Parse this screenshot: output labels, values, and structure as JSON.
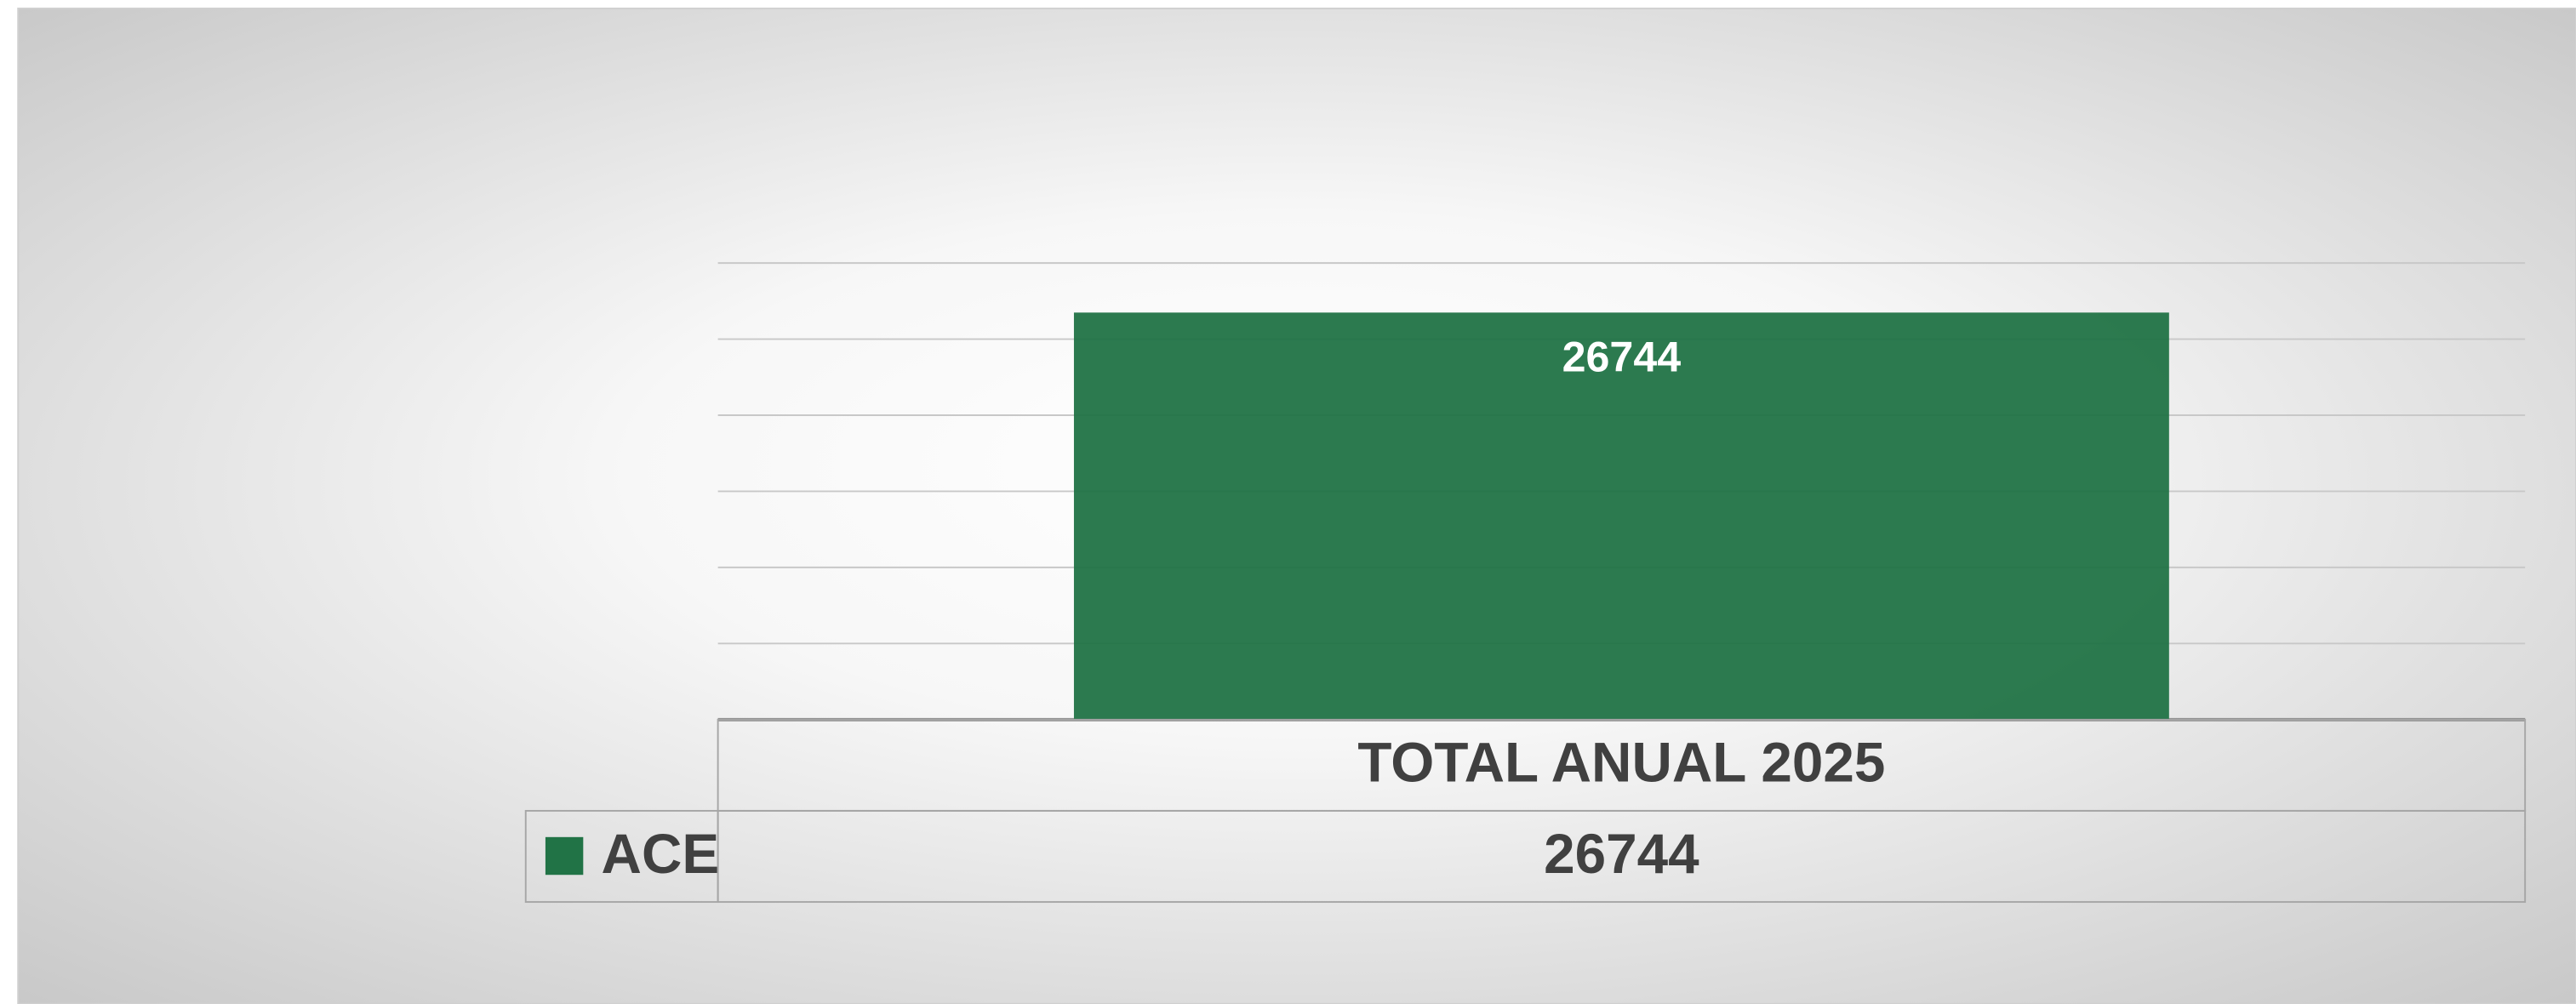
{
  "chart_data": {
    "type": "bar",
    "categories": [
      "TOTAL ANUAL 2025"
    ],
    "series": [
      {
        "name": "ACE",
        "color": "#217346",
        "values": [
          26744
        ]
      }
    ],
    "ylim": [
      0,
      30000
    ],
    "yticks": [
      0,
      5000,
      10000,
      15000,
      20000,
      25000,
      30000
    ],
    "grid": true,
    "data_table": true
  }
}
